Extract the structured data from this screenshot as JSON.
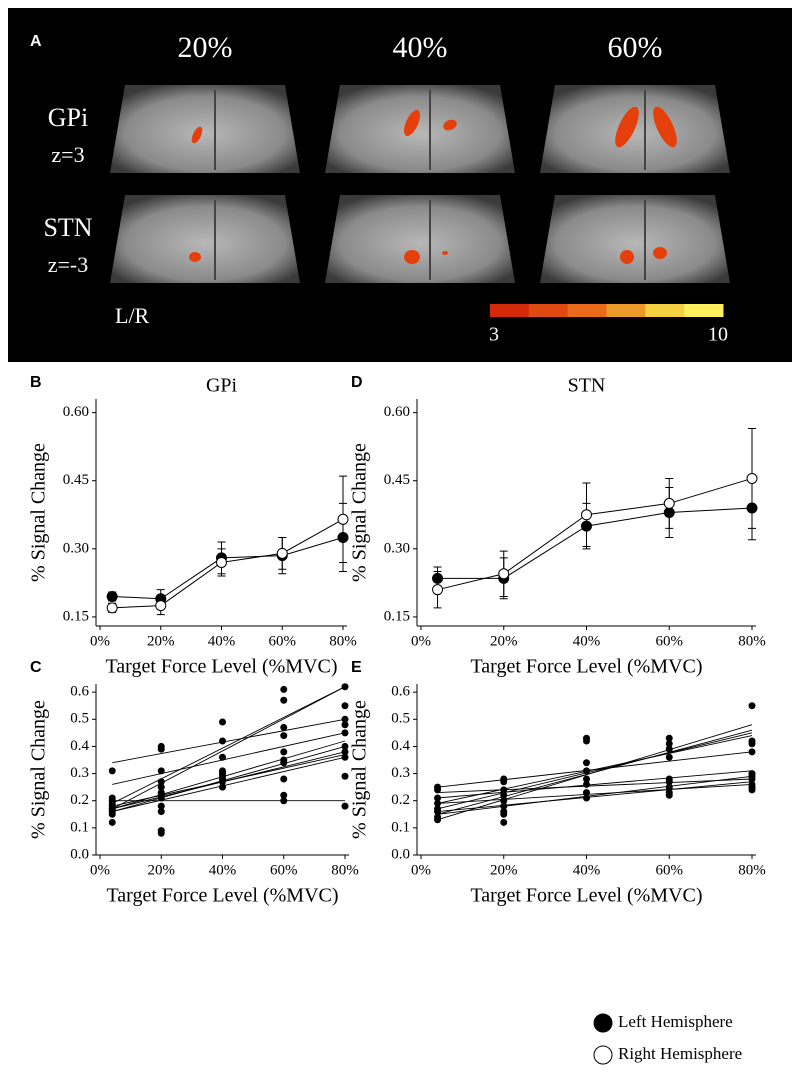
{
  "panel_a": {
    "label": "A",
    "columns": [
      "20%",
      "40%",
      "60%"
    ],
    "rows": [
      {
        "region": "GPi",
        "slice": "z=3"
      },
      {
        "region": "STN",
        "slice": "z=-3"
      }
    ],
    "orientation": "L/R",
    "colorbar": {
      "min": 3,
      "max": 10,
      "colors": [
        "#d42a0a",
        "#e04a10",
        "#e86a1a",
        "#eb9a2a",
        "#f5d040",
        "#fff060"
      ]
    }
  },
  "chart_data": [
    {
      "type": "line",
      "panel": "B",
      "title": "GPi",
      "x_label": "Target Force Level (%MVC)",
      "y_label": "% Signal Change",
      "x": [
        4,
        20,
        40,
        60,
        80
      ],
      "xlim": [
        0,
        80
      ],
      "xticks": [
        {
          "value": 0,
          "label": "0%"
        },
        {
          "value": 20,
          "label": "20%"
        },
        {
          "value": 40,
          "label": "40%"
        },
        {
          "value": 60,
          "label": "60%"
        },
        {
          "value": 80,
          "label": "80%"
        }
      ],
      "ylim": [
        0.13,
        0.63
      ],
      "yticks": [
        0.15,
        {
          "value": 0.3,
          "label": "0.30"
        },
        0.45,
        {
          "value": 0.6,
          "label": "0.60"
        }
      ],
      "series": [
        {
          "name": "Left Hemisphere",
          "marker_fill": "#000000",
          "values": [
            0.195,
            0.19,
            0.28,
            0.285,
            0.325
          ],
          "errors": [
            0.01,
            0.02,
            0.035,
            0.04,
            0.075
          ]
        },
        {
          "name": "Right Hemisphere",
          "marker_fill": "#ffffff",
          "values": [
            0.17,
            0.175,
            0.27,
            0.29,
            0.365
          ],
          "errors": [
            0.01,
            0.02,
            0.03,
            0.035,
            0.095
          ]
        }
      ]
    },
    {
      "type": "line",
      "panel": "D",
      "title": "STN",
      "x_label": "Target Force Level (%MVC)",
      "y_label": "% Signal Change",
      "x": [
        4,
        20,
        40,
        60,
        80
      ],
      "xlim": [
        0,
        80
      ],
      "xticks": [
        {
          "value": 0,
          "label": "0%"
        },
        {
          "value": 20,
          "label": "20%"
        },
        {
          "value": 40,
          "label": "40%"
        },
        {
          "value": 60,
          "label": "60%"
        },
        {
          "value": 80,
          "label": "80%"
        }
      ],
      "ylim": [
        0.13,
        0.63
      ],
      "yticks": [
        0.15,
        {
          "value": 0.3,
          "label": "0.30"
        },
        0.45,
        {
          "value": 0.6,
          "label": "0.60"
        }
      ],
      "series": [
        {
          "marker_fill": "#000000",
          "values": [
            0.235,
            0.235,
            0.35,
            0.38,
            0.39
          ],
          "errors": [
            0.025,
            0.045,
            0.05,
            0.055,
            0.07
          ]
        },
        {
          "marker_fill": "#ffffff",
          "values": [
            0.21,
            0.245,
            0.375,
            0.4,
            0.455
          ],
          "errors": [
            0.04,
            0.05,
            0.07,
            0.055,
            0.11
          ]
        }
      ]
    },
    {
      "type": "scatter",
      "panel": "C",
      "x_label": "Target Force Level (%MVC)",
      "y_label": "% Signal Change",
      "xlim": [
        0,
        80
      ],
      "xticks": [
        {
          "value": 0,
          "label": "0%"
        },
        {
          "value": 20,
          "label": "20%"
        },
        {
          "value": 40,
          "label": "40%"
        },
        {
          "value": 60,
          "label": "60%"
        },
        {
          "value": 80,
          "label": "80%"
        }
      ],
      "ylim": [
        0,
        0.63
      ],
      "yticks": [
        {
          "value": 0,
          "label": "0.0"
        },
        0.1,
        0.2,
        0.3,
        0.4,
        0.5,
        0.6
      ],
      "x": [
        4,
        4,
        4,
        4,
        4,
        4,
        4,
        4,
        4,
        4,
        20,
        20,
        20,
        20,
        20,
        20,
        20,
        20,
        20,
        20,
        20,
        20,
        40,
        40,
        40,
        40,
        40,
        40,
        40,
        40,
        40,
        60,
        60,
        60,
        60,
        60,
        60,
        60,
        60,
        60,
        60,
        80,
        80,
        80,
        80,
        80,
        80,
        80,
        80,
        80,
        80
      ],
      "values": [
        0.31,
        0.21,
        0.19,
        0.18,
        0.17,
        0.16,
        0.15,
        0.12,
        0.2,
        0.17,
        0.4,
        0.39,
        0.31,
        0.27,
        0.25,
        0.22,
        0.21,
        0.18,
        0.16,
        0.08,
        0.09,
        0.23,
        0.49,
        0.42,
        0.36,
        0.31,
        0.3,
        0.29,
        0.28,
        0.27,
        0.25,
        0.61,
        0.57,
        0.47,
        0.44,
        0.38,
        0.35,
        0.34,
        0.28,
        0.22,
        0.2,
        0.62,
        0.55,
        0.5,
        0.48,
        0.45,
        0.4,
        0.38,
        0.36,
        0.29,
        0.18
      ],
      "fit_x": [
        4,
        80
      ],
      "fits": [
        {
          "values": [
            0.17,
            0.62
          ]
        },
        {
          "values": [
            0.19,
            0.62
          ]
        },
        {
          "values": [
            0.34,
            0.5
          ]
        },
        {
          "values": [
            0.26,
            0.45
          ]
        },
        {
          "values": [
            0.17,
            0.42
          ]
        },
        {
          "values": [
            0.16,
            0.4
          ]
        },
        {
          "values": [
            0.17,
            0.38
          ]
        },
        {
          "values": [
            0.18,
            0.37
          ]
        },
        {
          "values": [
            0.16,
            0.36
          ]
        },
        {
          "values": [
            0.2,
            0.2
          ]
        }
      ]
    },
    {
      "type": "scatter",
      "panel": "E",
      "x_label": "Target Force Level (%MVC)",
      "y_label": "% Signal Change",
      "xlim": [
        0,
        80
      ],
      "xticks": [
        {
          "value": 0,
          "label": "0%"
        },
        {
          "value": 20,
          "label": "20%"
        },
        {
          "value": 40,
          "label": "40%"
        },
        {
          "value": 60,
          "label": "60%"
        },
        {
          "value": 80,
          "label": "80%"
        }
      ],
      "ylim": [
        0,
        0.63
      ],
      "yticks": [
        {
          "value": 0,
          "label": "0.0"
        },
        0.1,
        0.2,
        0.3,
        0.4,
        0.5,
        0.6
      ],
      "x": [
        4,
        4,
        4,
        4,
        4,
        4,
        4,
        4,
        20,
        20,
        20,
        20,
        20,
        20,
        20,
        20,
        20,
        40,
        40,
        40,
        40,
        40,
        40,
        40,
        40,
        60,
        60,
        60,
        60,
        60,
        60,
        60,
        60,
        60,
        80,
        80,
        80,
        80,
        80,
        80,
        80,
        80,
        80,
        80
      ],
      "values": [
        0.25,
        0.24,
        0.21,
        0.19,
        0.17,
        0.16,
        0.14,
        0.13,
        0.28,
        0.27,
        0.24,
        0.22,
        0.2,
        0.18,
        0.16,
        0.15,
        0.12,
        0.43,
        0.42,
        0.34,
        0.31,
        0.28,
        0.26,
        0.23,
        0.21,
        0.43,
        0.41,
        0.39,
        0.36,
        0.28,
        0.27,
        0.25,
        0.23,
        0.22,
        0.55,
        0.42,
        0.41,
        0.38,
        0.3,
        0.29,
        0.28,
        0.26,
        0.25,
        0.24
      ],
      "fit_x": [
        4,
        80
      ],
      "fits": [
        {
          "values": [
            0.13,
            0.48
          ]
        },
        {
          "values": [
            0.15,
            0.46
          ]
        },
        {
          "values": [
            0.17,
            0.45
          ]
        },
        {
          "values": [
            0.19,
            0.44
          ]
        },
        {
          "values": [
            0.25,
            0.38
          ]
        },
        {
          "values": [
            0.21,
            0.31
          ]
        },
        {
          "values": [
            0.15,
            0.29
          ]
        },
        {
          "values": [
            0.23,
            0.28
          ]
        },
        {
          "values": [
            0.16,
            0.27
          ]
        },
        {
          "values": [
            0.19,
            0.26
          ]
        }
      ]
    }
  ]
}
